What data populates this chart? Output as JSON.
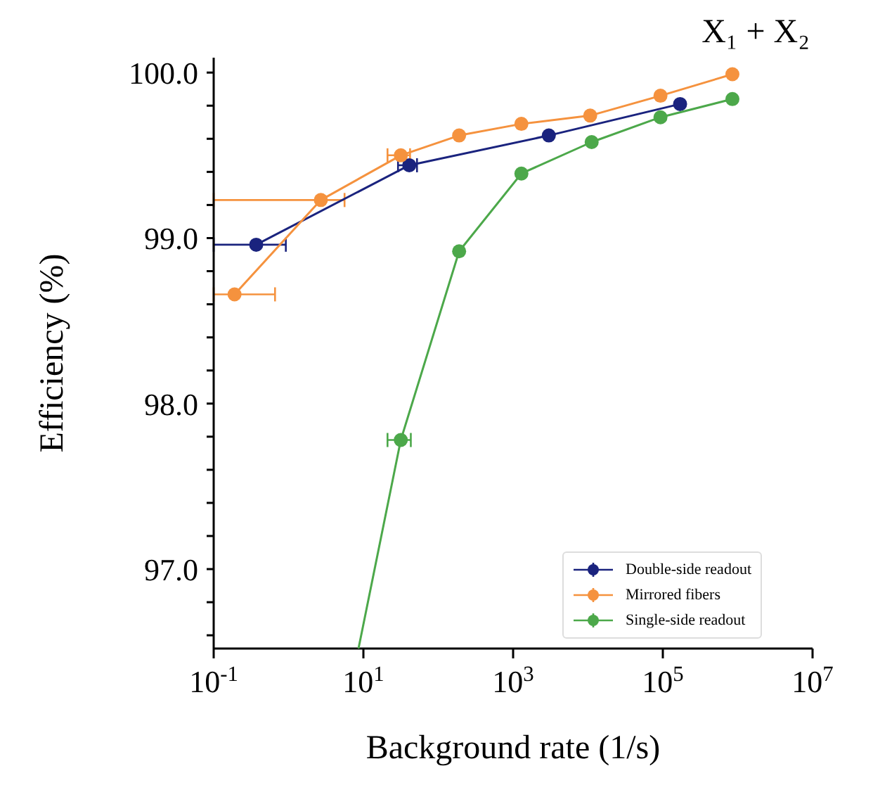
{
  "chart_data": {
    "type": "line",
    "title": "X₁ + X₂",
    "xlabel": "Background rate (1/s)",
    "ylabel": "Efficiency (%)",
    "log": "x",
    "xlim": [
      0.1,
      10000000
    ],
    "xticks": [
      {
        "value": 0.1,
        "label": "10$^{-1}$"
      },
      {
        "value": 10,
        "label": "10$^{1}$"
      },
      {
        "value": 1000,
        "label": "10$^{3}$"
      },
      {
        "value": 100000,
        "label": "10$^{5}$"
      },
      {
        "value": 10000000,
        "label": "10$^{7}$"
      }
    ],
    "ylim": [
      96.52,
      100.09
    ],
    "yticks": [
      {
        "value": 96.6,
        "label": null
      },
      {
        "value": 96.8,
        "label": null
      },
      {
        "value": 97,
        "label": "97.0"
      },
      {
        "value": 97.2,
        "label": null
      },
      {
        "value": 97.4,
        "label": null
      },
      {
        "value": 97.6,
        "label": null
      },
      {
        "value": 97.8,
        "label": null
      },
      {
        "value": 98,
        "label": "98.0"
      },
      {
        "value": 98.2,
        "label": null
      },
      {
        "value": 98.4,
        "label": null
      },
      {
        "value": 98.6,
        "label": null
      },
      {
        "value": 98.8,
        "label": null
      },
      {
        "value": 99,
        "label": "99.0"
      },
      {
        "value": 99.2,
        "label": null
      },
      {
        "value": 99.4,
        "label": null
      },
      {
        "value": 99.6,
        "label": null
      },
      {
        "value": 99.8,
        "label": null
      },
      {
        "value": 100,
        "label": "100.0"
      }
    ],
    "marker": "circle",
    "legend": "bottom right",
    "series": [
      {
        "name": "Double-side readout",
        "color": "#1a237e",
        "x": [
          0.37,
          41,
          3000,
          170000
        ],
        "values": [
          98.96,
          99.44,
          99.62,
          99.81
        ],
        "xerrors": [
          [
            0.1,
            0.92
          ],
          [
            29,
            52
          ],
          null,
          null
        ]
      },
      {
        "name": "Mirrored fibers",
        "color": "#f5923e",
        "x": [
          0.19,
          2.7,
          31.6,
          190,
          1290,
          10700,
          93000,
          850000
        ],
        "values": [
          98.66,
          99.23,
          99.5,
          99.62,
          99.69,
          99.74,
          99.86,
          99.99
        ],
        "xerrors": [
          [
            0.1,
            0.66
          ],
          [
            0.1,
            5.6
          ],
          [
            21,
            42
          ],
          null,
          null,
          null,
          null,
          null
        ]
      },
      {
        "name": "Single-side readout",
        "color": "#4ca84a",
        "x": [
          31.6,
          190,
          1290,
          11200,
          93000,
          850000
        ],
        "values": [
          97.78,
          98.92,
          99.39,
          99.58,
          99.73,
          99.84
        ],
        "xerrors": [
          [
            21,
            43
          ],
          null,
          null,
          null,
          null,
          null
        ]
      },
      {
        "color": "#4ca84a",
        "marker": "none",
        "x": [
          8.6,
          31.6
        ],
        "values": [
          96.52,
          97.78
        ]
      }
    ]
  }
}
